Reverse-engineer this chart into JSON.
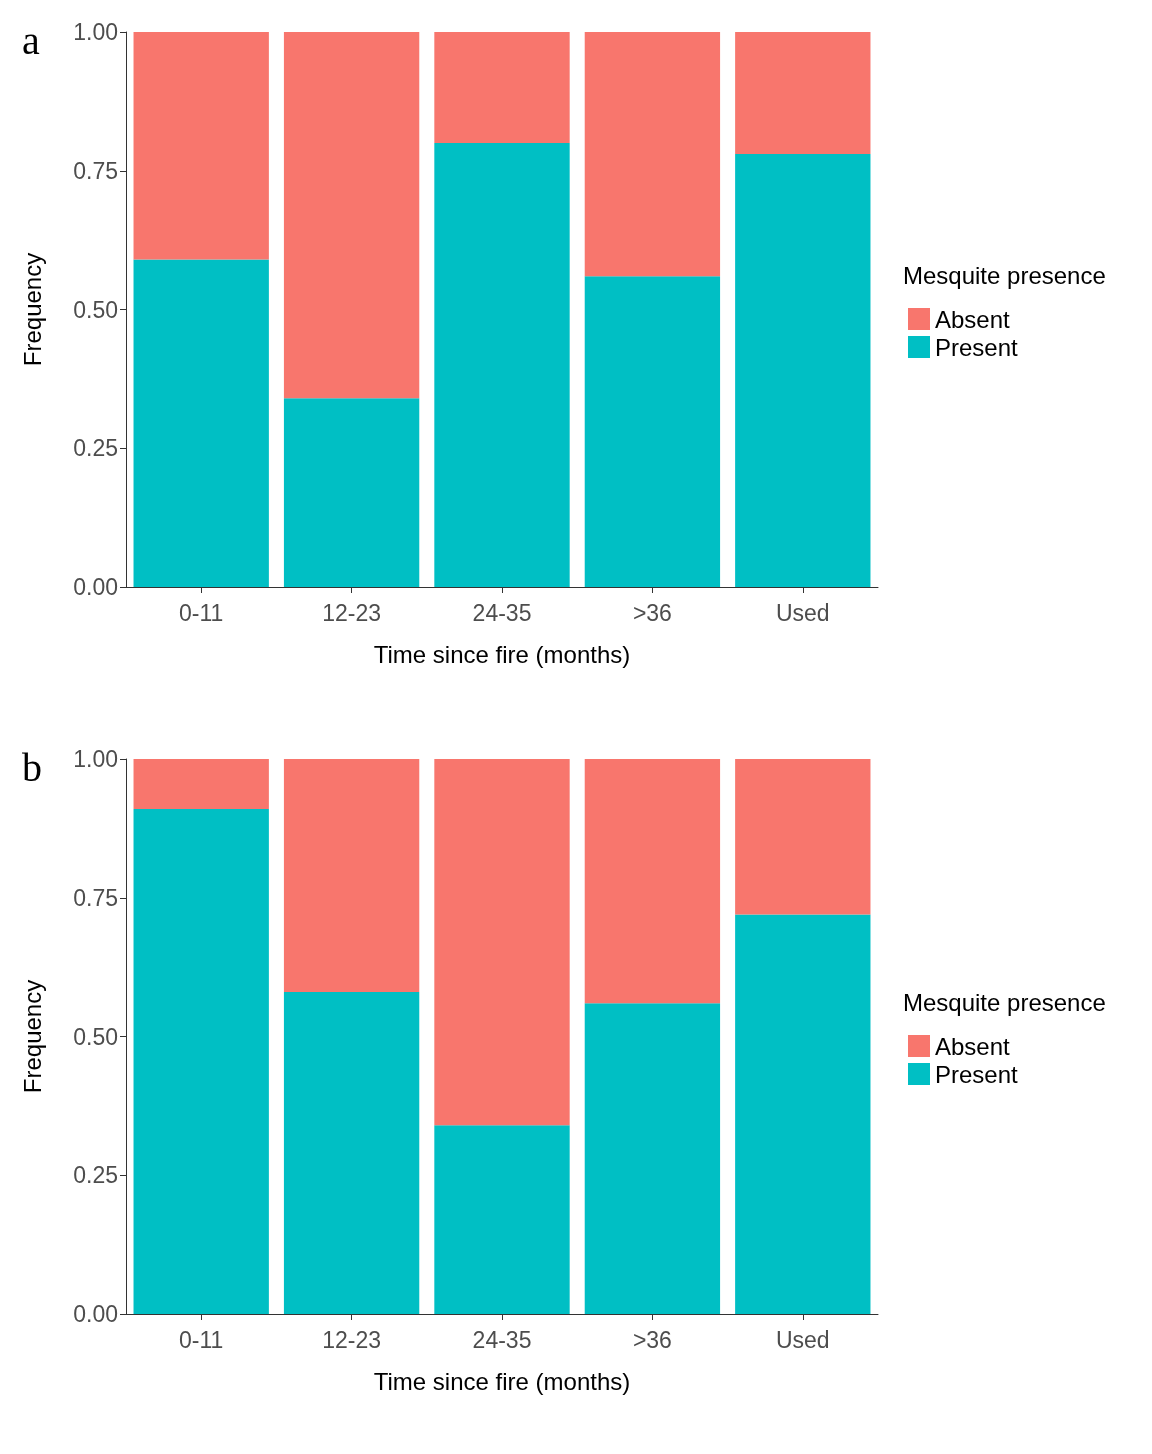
{
  "chart_data": [
    {
      "type": "bar",
      "annotations": [
        "a"
      ],
      "xlabel": "Time since fire (months)",
      "ylabel": "Frequency",
      "legend_title": "Mesquite presence",
      "categories": [
        "0-11",
        "12-23",
        "24-35",
        ">36",
        "Used"
      ],
      "stacked": true,
      "series": [
        {
          "name": "Present",
          "color": "#00bfc4",
          "values": [
            0.59,
            0.34,
            0.8,
            0.56,
            0.78
          ]
        },
        {
          "name": "Absent",
          "color": "#f8766d",
          "values": [
            0.41,
            0.66,
            0.2,
            0.44,
            0.22
          ]
        }
      ],
      "ylim": [
        0,
        1
      ],
      "yticks": [
        {
          "value": 0,
          "label": "0.00"
        },
        {
          "value": 0.25,
          "label": "0.25"
        },
        {
          "value": 0.5,
          "label": "0.50"
        },
        {
          "value": 0.75,
          "label": "0.75"
        },
        {
          "value": 1,
          "label": "1.00"
        }
      ],
      "grid": false,
      "legend": "right"
    },
    {
      "type": "bar",
      "annotations": [
        "b"
      ],
      "xlabel": "Time since fire (months)",
      "ylabel": "Frequency",
      "legend_title": "Mesquite presence",
      "categories": [
        "0-11",
        "12-23",
        "24-35",
        ">36",
        "Used"
      ],
      "stacked": true,
      "series": [
        {
          "name": "Present",
          "color": "#00bfc4",
          "values": [
            0.91,
            0.58,
            0.34,
            0.56,
            0.72
          ]
        },
        {
          "name": "Absent",
          "color": "#f8766d",
          "values": [
            0.09,
            0.42,
            0.66,
            0.44,
            0.28
          ]
        }
      ],
      "ylim": [
        0,
        1
      ],
      "yticks": [
        {
          "value": 0,
          "label": "0.00"
        },
        {
          "value": 0.25,
          "label": "0.25"
        },
        {
          "value": 0.5,
          "label": "0.50"
        },
        {
          "value": 0.75,
          "label": "0.75"
        },
        {
          "value": 1,
          "label": "1.00"
        }
      ],
      "grid": false,
      "legend": "right"
    }
  ]
}
